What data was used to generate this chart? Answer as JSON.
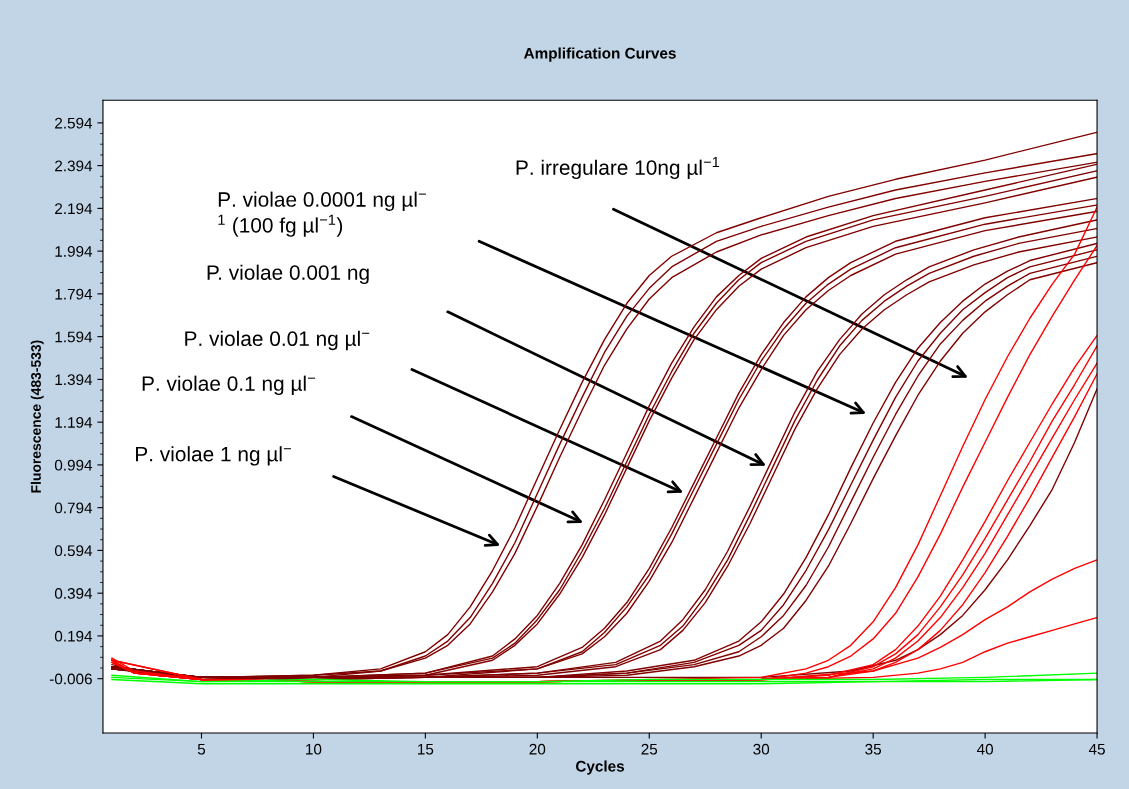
{
  "chart_data": {
    "type": "line",
    "title": "Amplification Curves",
    "xlabel": "Cycles",
    "ylabel": "Fluorescence (483-533)",
    "xlim": [
      0.6,
      45
    ],
    "ylim": [
      -0.26,
      2.7
    ],
    "xticks": [
      5,
      10,
      15,
      20,
      25,
      30,
      35,
      40,
      45
    ],
    "yticks": [
      {
        "value": -0.006,
        "label": "-0.006"
      },
      0.194,
      0.394,
      0.594,
      0.794,
      0.994,
      1.194,
      1.394,
      1.594,
      1.794,
      1.994,
      2.194,
      2.394,
      2.594
    ],
    "grid": false,
    "marker": "none",
    "line_style": "solid",
    "annotations": [
      "P. violae 1 ng µl$^{−}$",
      "P. violae 0.1 ng µl$^{−}$",
      "P. violae 0.01 ng µl$^{−}$",
      "P. violae 0.001 ng",
      "P. violae 0.0001 ng µl$^{−}$\n$^{1}$ (100 fg µl$^{−1}$)",
      "P. irregulare 10ng µl$^{−1}$"
    ],
    "series": [
      {
        "color": "#800000",
        "x": [
          1,
          3,
          5,
          10,
          13,
          15,
          16,
          17,
          18,
          19,
          20,
          21,
          22,
          23,
          24,
          25,
          26,
          28,
          30,
          33,
          36,
          40,
          45
        ],
        "values": [
          0.06,
          0.01,
          0.0,
          0.01,
          0.04,
          0.12,
          0.2,
          0.33,
          0.5,
          0.7,
          0.93,
          1.16,
          1.38,
          1.58,
          1.75,
          1.88,
          1.97,
          2.08,
          2.15,
          2.25,
          2.33,
          2.42,
          2.55
        ]
      },
      {
        "color": "#800000",
        "x": [
          1,
          3,
          5,
          10,
          13,
          15,
          16,
          17,
          18,
          19,
          20,
          21,
          22,
          23,
          24,
          25,
          26,
          28,
          30,
          33,
          36,
          40,
          45
        ],
        "values": [
          0.05,
          0.01,
          0.0,
          0.01,
          0.03,
          0.1,
          0.17,
          0.28,
          0.44,
          0.63,
          0.86,
          1.09,
          1.31,
          1.52,
          1.69,
          1.82,
          1.92,
          2.04,
          2.11,
          2.2,
          2.28,
          2.36,
          2.45
        ]
      },
      {
        "color": "#800000",
        "x": [
          1,
          3,
          5,
          10,
          13,
          15,
          16,
          17,
          18,
          19,
          20,
          21,
          22,
          23,
          24,
          25,
          26,
          28,
          30,
          33,
          36,
          40,
          45
        ],
        "values": [
          0.05,
          0.01,
          -0.01,
          0.0,
          0.03,
          0.09,
          0.15,
          0.25,
          0.4,
          0.58,
          0.8,
          1.03,
          1.25,
          1.46,
          1.63,
          1.77,
          1.87,
          1.99,
          2.07,
          2.16,
          2.24,
          2.32,
          2.41
        ]
      },
      {
        "color": "#800000",
        "x": [
          1,
          5,
          10,
          15,
          18,
          19,
          20,
          21,
          22,
          23,
          24,
          25,
          26,
          27,
          28,
          29,
          30,
          32,
          35,
          40,
          45
        ],
        "values": [
          0.05,
          0.0,
          0.0,
          0.02,
          0.1,
          0.18,
          0.29,
          0.44,
          0.62,
          0.83,
          1.05,
          1.27,
          1.47,
          1.64,
          1.78,
          1.88,
          1.96,
          2.06,
          2.16,
          2.28,
          2.4
        ]
      },
      {
        "color": "#800000",
        "x": [
          1,
          5,
          10,
          15,
          18,
          19,
          20,
          21,
          22,
          23,
          24,
          25,
          26,
          27,
          28,
          29,
          30,
          32,
          35,
          40,
          45
        ],
        "values": [
          0.05,
          0.0,
          0.0,
          0.02,
          0.09,
          0.16,
          0.27,
          0.41,
          0.59,
          0.79,
          1.01,
          1.23,
          1.43,
          1.61,
          1.75,
          1.86,
          1.94,
          2.04,
          2.14,
          2.25,
          2.37
        ]
      },
      {
        "color": "#800000",
        "x": [
          1,
          5,
          10,
          15,
          18,
          19,
          20,
          21,
          22,
          23,
          24,
          25,
          26,
          27,
          28,
          29,
          30,
          32,
          35,
          40,
          45
        ],
        "values": [
          0.04,
          -0.01,
          0.0,
          0.01,
          0.08,
          0.15,
          0.25,
          0.39,
          0.56,
          0.76,
          0.98,
          1.2,
          1.4,
          1.58,
          1.72,
          1.83,
          1.91,
          2.01,
          2.11,
          2.22,
          2.34
        ]
      },
      {
        "color": "#800000",
        "x": [
          1,
          5,
          10,
          15,
          20,
          22,
          23,
          24,
          25,
          26,
          27,
          28,
          29,
          30,
          31,
          32,
          33,
          34,
          36,
          40,
          45
        ],
        "values": [
          0.05,
          0.0,
          0.0,
          0.01,
          0.05,
          0.14,
          0.23,
          0.35,
          0.51,
          0.7,
          0.91,
          1.12,
          1.33,
          1.51,
          1.66,
          1.78,
          1.87,
          1.94,
          2.04,
          2.15,
          2.24
        ]
      },
      {
        "color": "#800000",
        "x": [
          1,
          5,
          10,
          15,
          20,
          22,
          23,
          24,
          25,
          26,
          27,
          28,
          29,
          30,
          31,
          32,
          33,
          34,
          36,
          40,
          45
        ],
        "values": [
          0.05,
          0.0,
          0.0,
          0.01,
          0.04,
          0.12,
          0.21,
          0.33,
          0.48,
          0.67,
          0.88,
          1.09,
          1.3,
          1.48,
          1.63,
          1.75,
          1.84,
          1.91,
          2.01,
          2.12,
          2.21
        ]
      },
      {
        "color": "#800000",
        "x": [
          1,
          5,
          10,
          15,
          20,
          22,
          23,
          24,
          25,
          26,
          27,
          28,
          29,
          30,
          31,
          32,
          33,
          34,
          36,
          40,
          45
        ],
        "values": [
          0.04,
          0.0,
          -0.01,
          0.0,
          0.04,
          0.11,
          0.19,
          0.3,
          0.45,
          0.63,
          0.84,
          1.05,
          1.26,
          1.44,
          1.6,
          1.72,
          1.81,
          1.88,
          1.98,
          2.09,
          2.18
        ]
      },
      {
        "color": "#800000",
        "x": [
          1,
          5,
          10,
          15,
          20,
          23.5,
          25.5,
          26.5,
          27.5,
          28.5,
          29.5,
          30.5,
          31.5,
          32.5,
          33.5,
          34.5,
          35.5,
          36.5,
          37.5,
          39.5,
          41.5,
          45
        ],
        "values": [
          0.05,
          0.0,
          0.0,
          0.0,
          0.02,
          0.07,
          0.17,
          0.27,
          0.41,
          0.59,
          0.8,
          1.02,
          1.24,
          1.43,
          1.58,
          1.7,
          1.79,
          1.86,
          1.92,
          2.0,
          2.06,
          2.14
        ]
      },
      {
        "color": "#800000",
        "x": [
          1,
          5,
          10,
          15,
          20,
          23.5,
          25.5,
          26.5,
          27.5,
          28.5,
          29.5,
          30.5,
          31.5,
          32.5,
          33.5,
          34.5,
          35.5,
          36.5,
          37.5,
          39.5,
          41.5,
          45
        ],
        "values": [
          0.05,
          0.0,
          0.0,
          0.0,
          0.02,
          0.06,
          0.15,
          0.24,
          0.38,
          0.55,
          0.76,
          0.98,
          1.2,
          1.39,
          1.55,
          1.67,
          1.76,
          1.83,
          1.89,
          1.97,
          2.03,
          2.1
        ]
      },
      {
        "color": "#800000",
        "x": [
          1,
          5,
          10,
          15,
          20,
          23.5,
          25.5,
          26.5,
          27.5,
          28.5,
          29.5,
          30.5,
          31.5,
          32.5,
          33.5,
          34.5,
          35.5,
          36.5,
          37.5,
          39.5,
          41.5,
          45
        ],
        "values": [
          0.04,
          0.0,
          -0.01,
          0.0,
          0.01,
          0.05,
          0.13,
          0.22,
          0.35,
          0.52,
          0.72,
          0.94,
          1.16,
          1.35,
          1.51,
          1.63,
          1.72,
          1.79,
          1.85,
          1.93,
          1.99,
          2.06
        ]
      },
      {
        "color": "#800000",
        "x": [
          1,
          5,
          10,
          15,
          20,
          24,
          27,
          29,
          30,
          31,
          32,
          33,
          34,
          35,
          36,
          37,
          38,
          39,
          40,
          41,
          42,
          45
        ],
        "values": [
          0.05,
          0.0,
          0.0,
          0.0,
          0.0,
          0.03,
          0.08,
          0.17,
          0.26,
          0.39,
          0.56,
          0.76,
          0.98,
          1.19,
          1.38,
          1.54,
          1.66,
          1.76,
          1.84,
          1.9,
          1.95,
          2.03
        ]
      },
      {
        "color": "#800000",
        "x": [
          1,
          5,
          10,
          15,
          20,
          24,
          27,
          29,
          30,
          31,
          32,
          33,
          34,
          35,
          36,
          37,
          38,
          39,
          40,
          41,
          42,
          45
        ],
        "values": [
          0.05,
          0.0,
          0.0,
          0.0,
          0.0,
          0.02,
          0.07,
          0.15,
          0.22,
          0.34,
          0.5,
          0.69,
          0.9,
          1.11,
          1.31,
          1.48,
          1.61,
          1.72,
          1.8,
          1.87,
          1.92,
          2.0
        ]
      },
      {
        "color": "#800000",
        "x": [
          1,
          5,
          10,
          15,
          20,
          24,
          27,
          29,
          30,
          31,
          32,
          33,
          34,
          35,
          36,
          37,
          38,
          39,
          40,
          41,
          42,
          45
        ],
        "values": [
          0.04,
          0.0,
          0.0,
          0.0,
          0.0,
          0.02,
          0.06,
          0.12,
          0.19,
          0.29,
          0.43,
          0.61,
          0.82,
          1.03,
          1.23,
          1.41,
          1.56,
          1.67,
          1.76,
          1.83,
          1.89,
          1.97
        ]
      },
      {
        "color": "#800000",
        "x": [
          1,
          5,
          10,
          15,
          20,
          24,
          27,
          29,
          30,
          31,
          32,
          33,
          34,
          35,
          36,
          37,
          38,
          39,
          40,
          41,
          42,
          45
        ],
        "values": [
          0.04,
          0.0,
          -0.01,
          0.0,
          0.0,
          0.01,
          0.05,
          0.1,
          0.15,
          0.23,
          0.36,
          0.52,
          0.72,
          0.93,
          1.13,
          1.32,
          1.48,
          1.61,
          1.71,
          1.79,
          1.86,
          1.94
        ]
      },
      {
        "color": "#800000",
        "x": [
          1,
          5,
          10,
          20,
          30,
          34,
          36,
          37,
          38,
          39,
          40,
          41,
          42,
          43,
          44,
          45
        ],
        "values": [
          0.04,
          0.0,
          0.0,
          0.0,
          0.0,
          0.03,
          0.08,
          0.13,
          0.2,
          0.29,
          0.41,
          0.55,
          0.71,
          0.88,
          1.1,
          1.35
        ]
      },
      {
        "color": "#ff0000",
        "x": [
          1,
          2,
          5,
          10,
          20,
          30,
          32,
          33,
          34,
          35,
          36,
          37,
          38,
          39,
          40,
          41,
          42,
          43,
          44,
          45
        ],
        "values": [
          0.09,
          0.03,
          -0.01,
          -0.02,
          -0.02,
          0.0,
          0.04,
          0.08,
          0.15,
          0.26,
          0.42,
          0.62,
          0.85,
          1.08,
          1.3,
          1.5,
          1.68,
          1.84,
          1.98,
          2.2
        ]
      },
      {
        "color": "#ff0000",
        "x": [
          1,
          2,
          5,
          10,
          20,
          30,
          32,
          33,
          34,
          35,
          36,
          37,
          38,
          39,
          40,
          41,
          42,
          43,
          44,
          45
        ],
        "values": [
          0.08,
          0.02,
          -0.01,
          -0.02,
          -0.02,
          -0.01,
          0.02,
          0.05,
          0.1,
          0.18,
          0.3,
          0.47,
          0.67,
          0.89,
          1.1,
          1.31,
          1.51,
          1.69,
          1.86,
          2.02
        ]
      },
      {
        "color": "#ff0000",
        "x": [
          1,
          2,
          5,
          10,
          20,
          30,
          33,
          35,
          36,
          37,
          38,
          39,
          40,
          41,
          42,
          43,
          44,
          45
        ],
        "values": [
          0.08,
          0.02,
          -0.01,
          -0.02,
          -0.02,
          -0.01,
          0.01,
          0.06,
          0.13,
          0.24,
          0.38,
          0.55,
          0.73,
          0.92,
          1.1,
          1.28,
          1.45,
          1.6
        ]
      },
      {
        "color": "#ff0000",
        "x": [
          1,
          2,
          5,
          10,
          20,
          30,
          33,
          35,
          36,
          37,
          38,
          39,
          40,
          41,
          42,
          43,
          44,
          45
        ],
        "values": [
          0.08,
          0.02,
          -0.01,
          -0.02,
          -0.02,
          -0.01,
          0.0,
          0.05,
          0.11,
          0.2,
          0.33,
          0.48,
          0.65,
          0.83,
          1.01,
          1.2,
          1.37,
          1.55
        ]
      },
      {
        "color": "#ff0000",
        "x": [
          1,
          2,
          5,
          10,
          20,
          30,
          33,
          35,
          36,
          37,
          38,
          39,
          40,
          41,
          42,
          43,
          44,
          45
        ],
        "values": [
          0.07,
          0.02,
          -0.01,
          -0.02,
          -0.02,
          -0.01,
          0.0,
          0.04,
          0.09,
          0.17,
          0.28,
          0.42,
          0.58,
          0.76,
          0.94,
          1.12,
          1.3,
          1.47
        ]
      },
      {
        "color": "#ff0000",
        "x": [
          1,
          2,
          5,
          10,
          20,
          30,
          33,
          35,
          36,
          37,
          38,
          39,
          40,
          41,
          42,
          43,
          44,
          45
        ],
        "values": [
          0.07,
          0.02,
          -0.01,
          -0.02,
          -0.02,
          -0.01,
          0.0,
          0.03,
          0.07,
          0.13,
          0.22,
          0.34,
          0.49,
          0.66,
          0.84,
          1.03,
          1.22,
          1.42
        ]
      },
      {
        "color": "#ff0000",
        "x": [
          1,
          5,
          10,
          20,
          30,
          35,
          37,
          38,
          39,
          40,
          41,
          42,
          43,
          44,
          45
        ],
        "values": [
          0.08,
          -0.01,
          -0.02,
          -0.02,
          -0.01,
          0.03,
          0.09,
          0.14,
          0.2,
          0.27,
          0.33,
          0.4,
          0.46,
          0.51,
          0.55
        ]
      },
      {
        "color": "#ff0000",
        "x": [
          1,
          5,
          10,
          20,
          30,
          35,
          37,
          38,
          39,
          40,
          41,
          42,
          43,
          44,
          45
        ],
        "values": [
          0.08,
          -0.01,
          -0.02,
          -0.02,
          -0.01,
          0.0,
          0.02,
          0.04,
          0.07,
          0.12,
          0.16,
          0.19,
          0.22,
          0.25,
          0.28
        ]
      },
      {
        "color": "#00ff00",
        "x": [
          1,
          5,
          10,
          15,
          20,
          25,
          30,
          35,
          40,
          45
        ],
        "values": [
          0.0,
          -0.02,
          -0.02,
          -0.02,
          -0.02,
          -0.02,
          -0.02,
          -0.02,
          -0.01,
          -0.01
        ]
      },
      {
        "color": "#00ff00",
        "x": [
          1,
          5,
          10,
          15,
          20,
          25,
          30,
          35,
          40,
          45
        ],
        "values": [
          -0.01,
          -0.03,
          -0.03,
          -0.03,
          -0.03,
          -0.03,
          -0.03,
          -0.02,
          -0.02,
          -0.01
        ]
      },
      {
        "color": "#00ff00",
        "x": [
          1,
          5,
          10,
          15,
          20,
          25,
          30,
          35,
          40,
          45
        ],
        "values": [
          0.01,
          -0.02,
          -0.01,
          -0.02,
          -0.02,
          -0.01,
          -0.01,
          -0.01,
          0.0,
          0.02
        ]
      }
    ]
  }
}
